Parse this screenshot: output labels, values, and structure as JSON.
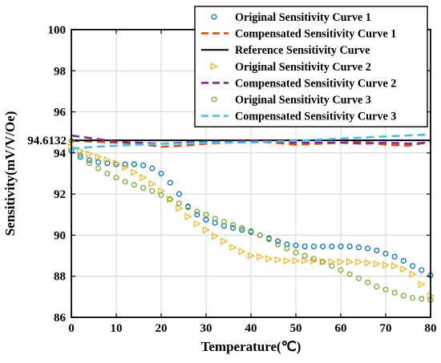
{
  "chart_data": {
    "type": "line",
    "xlabel": "Temperature(℃)",
    "ylabel": "Sensitivity(mV/V/Oe)",
    "xlim": [
      0,
      80
    ],
    "ylim": [
      86,
      100
    ],
    "xticks": [
      0,
      10,
      20,
      30,
      40,
      50,
      60,
      70,
      80
    ],
    "yticks": [
      86,
      88,
      90,
      92,
      94,
      96,
      98,
      100
    ],
    "xtick_labels": [
      "0",
      "10",
      "20",
      "30",
      "40",
      "50",
      "60",
      "70",
      "80"
    ],
    "ytick_labels": [
      "86",
      "88",
      "90",
      "92",
      "94",
      "96",
      "98",
      "100"
    ],
    "grid": true,
    "legend_position": "top-right",
    "annotation": {
      "text": "94.6132",
      "y": 94.6132
    },
    "series": [
      {
        "name": "Original Sensitivity Curve 1",
        "style": "markers-circle",
        "color": "#0072BD",
        "x": [
          0,
          2,
          4,
          6,
          8,
          10,
          12,
          14,
          16,
          18,
          20,
          22,
          24,
          26,
          28,
          30,
          32,
          34,
          36,
          38,
          40,
          42,
          44,
          46,
          48,
          50,
          52,
          54,
          56,
          58,
          60,
          62,
          64,
          66,
          68,
          70,
          72,
          74,
          76,
          78,
          80
        ],
        "y": [
          94.1,
          93.8,
          93.65,
          93.55,
          93.5,
          93.45,
          93.45,
          93.45,
          93.4,
          93.25,
          93.0,
          92.55,
          92.0,
          91.4,
          91.0,
          90.75,
          90.6,
          90.45,
          90.35,
          90.25,
          90.15,
          90.0,
          89.85,
          89.7,
          89.55,
          89.5,
          89.45,
          89.45,
          89.45,
          89.45,
          89.45,
          89.45,
          89.4,
          89.35,
          89.25,
          89.1,
          88.95,
          88.75,
          88.5,
          88.3,
          88.05
        ]
      },
      {
        "name": "Compensated Sensitivity Curve 1",
        "style": "dashed",
        "color": "#D95319",
        "x": [
          0,
          5,
          10,
          15,
          20,
          25,
          30,
          35,
          40,
          45,
          50,
          55,
          60,
          65,
          70,
          75,
          80
        ],
        "y": [
          94.6,
          94.55,
          94.5,
          94.45,
          94.3,
          94.35,
          94.45,
          94.5,
          94.55,
          94.5,
          94.4,
          94.45,
          94.5,
          94.55,
          94.4,
          94.35,
          94.55
        ]
      },
      {
        "name": "Reference Sensitivity Curve",
        "style": "solid",
        "color": "#000000",
        "x": [
          0,
          80
        ],
        "y": [
          94.6132,
          94.6132
        ]
      },
      {
        "name": "Original Sensitivity Curve 2",
        "style": "markers-triangle-right",
        "color": "#EDB120",
        "x": [
          0,
          2,
          4,
          6,
          8,
          10,
          12,
          14,
          16,
          18,
          20,
          22,
          24,
          26,
          28,
          30,
          32,
          34,
          36,
          38,
          40,
          42,
          44,
          46,
          48,
          50,
          52,
          54,
          56,
          58,
          60,
          62,
          64,
          66,
          68,
          70,
          72,
          74,
          76,
          78,
          80
        ],
        "y": [
          94.3,
          94.1,
          93.95,
          93.8,
          93.65,
          93.5,
          93.3,
          93.05,
          92.8,
          92.5,
          92.15,
          91.75,
          91.3,
          90.9,
          90.55,
          90.25,
          89.95,
          89.7,
          89.4,
          89.2,
          89.0,
          88.95,
          88.85,
          88.8,
          88.75,
          88.75,
          88.75,
          88.75,
          88.7,
          88.7,
          88.7,
          88.7,
          88.7,
          88.65,
          88.6,
          88.55,
          88.5,
          88.35,
          88.1,
          87.6,
          87.05
        ]
      },
      {
        "name": "Compensated Sensitivity Curve 2",
        "style": "dashed",
        "color": "#7E2F8E",
        "x": [
          0,
          5,
          10,
          15,
          20,
          25,
          30,
          35,
          40,
          45,
          50,
          55,
          60,
          65,
          70,
          75,
          80
        ],
        "y": [
          94.85,
          94.7,
          94.55,
          94.5,
          94.45,
          94.5,
          94.55,
          94.55,
          94.6,
          94.55,
          94.5,
          94.5,
          94.5,
          94.45,
          94.5,
          94.45,
          94.5
        ]
      },
      {
        "name": "Original Sensitivity Curve 3",
        "style": "markers-circle",
        "color": "#77AC30",
        "x": [
          0,
          2,
          4,
          6,
          8,
          10,
          12,
          14,
          16,
          18,
          20,
          22,
          24,
          26,
          28,
          30,
          32,
          34,
          36,
          38,
          40,
          42,
          44,
          46,
          48,
          50,
          52,
          54,
          56,
          58,
          60,
          62,
          64,
          66,
          68,
          70,
          72,
          74,
          76,
          78,
          80
        ],
        "y": [
          94.6,
          93.9,
          93.5,
          93.25,
          93.0,
          92.8,
          92.6,
          92.45,
          92.3,
          92.15,
          91.95,
          91.75,
          91.55,
          91.35,
          91.15,
          91.0,
          90.8,
          90.65,
          90.5,
          90.35,
          90.2,
          90.0,
          89.8,
          89.55,
          89.35,
          89.15,
          89.0,
          88.85,
          88.7,
          88.5,
          88.3,
          88.1,
          87.9,
          87.7,
          87.5,
          87.35,
          87.2,
          87.05,
          86.95,
          86.9,
          86.85
        ]
      },
      {
        "name": "Compensated Sensitivity Curve 3",
        "style": "dashed",
        "color": "#4DBEEE",
        "x": [
          0,
          5,
          10,
          15,
          20,
          25,
          30,
          35,
          40,
          45,
          50,
          55,
          60,
          65,
          70,
          75,
          80
        ],
        "y": [
          94.2,
          94.3,
          94.35,
          94.4,
          94.45,
          94.45,
          94.5,
          94.5,
          94.5,
          94.55,
          94.6,
          94.65,
          94.7,
          94.75,
          94.8,
          94.85,
          94.9
        ]
      }
    ]
  }
}
